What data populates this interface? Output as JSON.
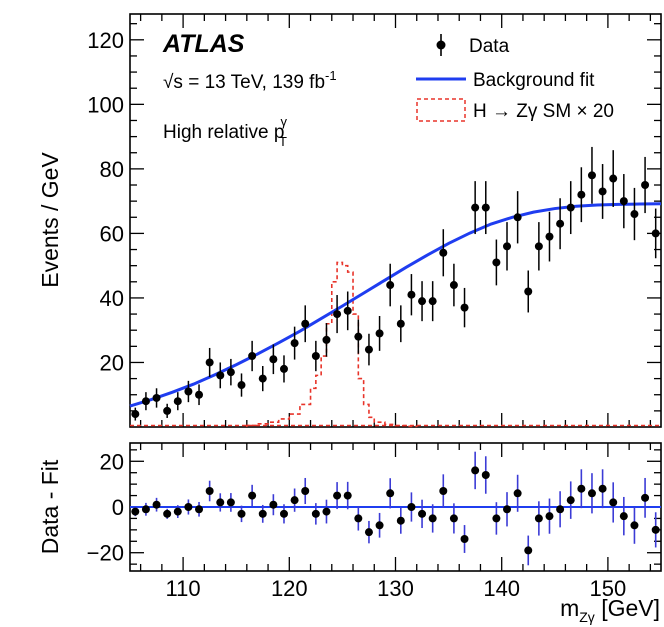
{
  "experiment": "ATLAS",
  "energy_label": "√s = 13 TeV, 139 fb",
  "lumi_exponent": "-1",
  "category_label": "High relative p",
  "category_sup": "γ",
  "category_sub": "T",
  "colors": {
    "data": "#000000",
    "fit": "#1f3df0",
    "signal": "#e8342a",
    "error_lower": "#3b3bd6"
  },
  "chart_data": [
    {
      "type": "scatter",
      "panel": "main",
      "ylabel": "Events / GeV",
      "xlim": [
        105,
        155
      ],
      "ylim": [
        0,
        128
      ],
      "yticks": [
        "20",
        "40",
        "60",
        "80",
        "100",
        "120"
      ],
      "legend_placement": "top-right",
      "series": [
        {
          "name": "Data",
          "style": "points-with-errors",
          "x": [
            105.5,
            106.5,
            107.5,
            108.5,
            109.5,
            110.5,
            111.5,
            112.5,
            113.5,
            114.5,
            115.5,
            116.5,
            117.5,
            118.5,
            119.5,
            120.5,
            121.5,
            122.5,
            123.5,
            124.5,
            125.5,
            126.5,
            127.5,
            128.5,
            129.5,
            130.5,
            131.5,
            132.5,
            133.5,
            134.5,
            135.5,
            136.5,
            137.5,
            138.5,
            139.5,
            140.5,
            141.5,
            142.5,
            143.5,
            144.5,
            145.5,
            146.5,
            147.5,
            148.5,
            149.5,
            150.5,
            151.5,
            152.5,
            153.5,
            154.5
          ],
          "y": [
            4,
            8,
            9,
            5,
            8,
            11,
            10,
            20,
            16,
            17,
            13,
            22,
            15,
            21,
            18,
            26,
            32,
            22,
            27,
            35,
            36,
            28,
            24,
            29,
            44,
            32,
            41,
            39,
            39,
            54,
            44,
            37,
            68,
            68,
            51,
            56,
            65,
            42,
            56,
            59,
            63,
            68,
            72,
            78,
            73,
            77,
            70,
            66,
            75,
            60
          ],
          "yerr": [
            2.0,
            2.8,
            3.0,
            2.2,
            2.8,
            3.3,
            3.2,
            4.5,
            4.0,
            4.1,
            3.6,
            4.7,
            3.9,
            4.6,
            4.2,
            5.1,
            5.7,
            4.7,
            5.2,
            5.9,
            6.0,
            5.3,
            4.9,
            5.4,
            6.6,
            5.7,
            6.4,
            6.2,
            6.2,
            7.3,
            6.6,
            6.1,
            8.2,
            8.2,
            7.1,
            7.5,
            8.1,
            6.5,
            7.5,
            7.7,
            7.9,
            8.2,
            8.5,
            8.8,
            8.5,
            8.8,
            8.4,
            8.1,
            8.7,
            7.7
          ]
        },
        {
          "name": "Background fit",
          "style": "line",
          "x": [
            105,
            107,
            109,
            111,
            113,
            115,
            117,
            119,
            121,
            123,
            125,
            127,
            129,
            131,
            133,
            135,
            137,
            139,
            141,
            143,
            145,
            147,
            149,
            151,
            153,
            155
          ],
          "y": [
            6.5,
            8.5,
            10.8,
            13.3,
            16.2,
            19.3,
            22.6,
            26.1,
            29.7,
            33.6,
            37.5,
            41.5,
            45.5,
            49.5,
            53.3,
            56.9,
            60.1,
            62.9,
            65.0,
            66.6,
            67.7,
            68.4,
            68.8,
            69.0,
            69.1,
            69.2
          ]
        },
        {
          "name": "H → Zγ SM × 20",
          "style": "dashed-step",
          "bin_edges": [
            116,
            117,
            118,
            119,
            120,
            121,
            122,
            122.5,
            123,
            123.5,
            124,
            124.5,
            125,
            125.5,
            126,
            126.5,
            127,
            127.5,
            128,
            129,
            130,
            131,
            132
          ],
          "values": [
            0.5,
            1,
            1.5,
            2.5,
            4,
            7,
            12,
            16,
            22,
            32,
            45,
            51,
            50,
            48,
            35,
            15,
            7,
            3,
            1.5,
            0.8,
            0.4,
            0.2
          ]
        }
      ]
    },
    {
      "type": "scatter",
      "panel": "ratio",
      "xlabel": "m",
      "xlabel_sub": "Zγ",
      "xlabel_unit": "[GeV]",
      "ylabel": "Data - Fit",
      "xlim": [
        105,
        155
      ],
      "ylim": [
        -28,
        28
      ],
      "yticks": [
        "20",
        "0",
        "−20"
      ],
      "xticks": [
        "110",
        "120",
        "130",
        "140",
        "150"
      ],
      "series": [
        {
          "name": "Data - Fit",
          "style": "points-with-errors",
          "x": [
            105.5,
            106.5,
            107.5,
            108.5,
            109.5,
            110.5,
            111.5,
            112.5,
            113.5,
            114.5,
            115.5,
            116.5,
            117.5,
            118.5,
            119.5,
            120.5,
            121.5,
            122.5,
            123.5,
            124.5,
            125.5,
            126.5,
            127.5,
            128.5,
            129.5,
            130.5,
            131.5,
            132.5,
            133.5,
            134.5,
            135.5,
            136.5,
            137.5,
            138.5,
            139.5,
            140.5,
            141.5,
            142.5,
            143.5,
            144.5,
            145.5,
            146.5,
            147.5,
            148.5,
            149.5,
            150.5,
            151.5,
            152.5,
            153.5,
            154.5
          ],
          "y": [
            -2,
            -1,
            1,
            -3,
            -2,
            0,
            -1,
            7,
            2,
            2,
            -3,
            5,
            -3,
            1,
            -3,
            3,
            7,
            -3,
            -2,
            5,
            5,
            -5,
            -11,
            -8,
            6,
            -6,
            0,
            -3,
            -5,
            7,
            -5,
            -14,
            16,
            14,
            -5,
            -1,
            6,
            -19,
            -5,
            -4,
            -1,
            3,
            8,
            6,
            8,
            2,
            -4,
            -8,
            4,
            -10
          ],
          "yerr": [
            2.0,
            2.8,
            3.0,
            2.2,
            2.8,
            3.3,
            3.2,
            4.5,
            4.0,
            4.1,
            3.6,
            4.7,
            3.9,
            4.6,
            4.2,
            5.1,
            5.7,
            4.7,
            5.2,
            5.9,
            6.0,
            5.3,
            4.9,
            5.4,
            6.6,
            5.7,
            6.4,
            6.2,
            6.2,
            7.3,
            6.6,
            6.1,
            8.2,
            8.2,
            7.1,
            7.5,
            8.1,
            6.5,
            7.5,
            7.7,
            7.9,
            8.2,
            8.5,
            8.8,
            8.5,
            8.8,
            8.4,
            8.1,
            8.7,
            7.7
          ]
        }
      ]
    }
  ]
}
